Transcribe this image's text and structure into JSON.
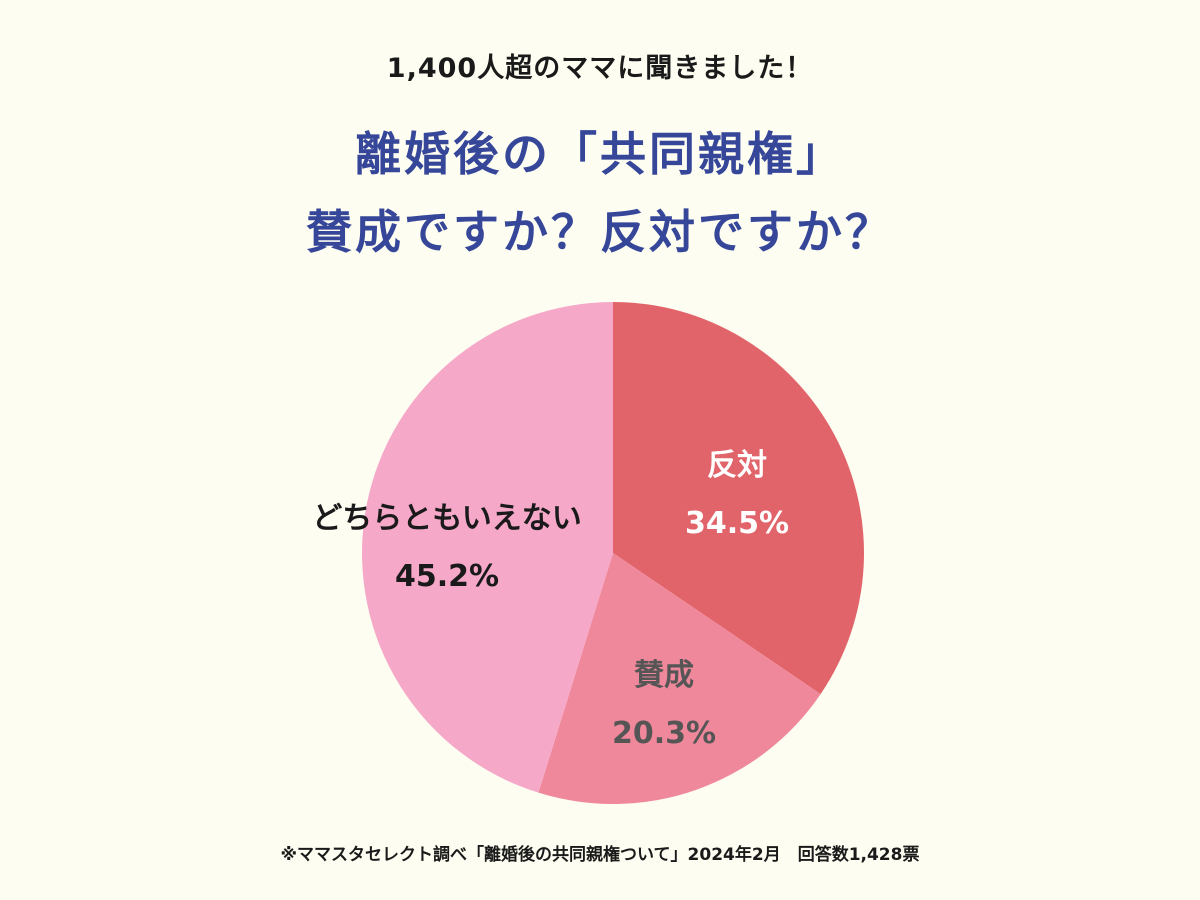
{
  "header": {
    "subtitle": "1,400人超のママに聞きました！",
    "title_line1": "離婚後の「共同親権」",
    "title_line2": "賛成ですか？反対ですか？"
  },
  "chart_data": {
    "type": "pie",
    "title": "離婚後の「共同親権」 賛成ですか？反対ですか？",
    "slices": [
      {
        "label": "反対",
        "value": 34.5,
        "value_label": "34.5%",
        "color": "#e2646b",
        "label_color": "#ffffff",
        "value_color": "#ffffff"
      },
      {
        "label": "賛成",
        "value": 20.3,
        "value_label": "20.3%",
        "color": "#f0889c",
        "label_color": "#555555",
        "value_color": "#555555"
      },
      {
        "label": "どちらともいえない",
        "value": 45.2,
        "value_label": "45.2%",
        "color": "#f6a8c9",
        "label_color": "#1a1a1a",
        "value_color": "#1a1a1a"
      }
    ],
    "start_angle": "top",
    "direction": "clockwise",
    "legend": "none"
  },
  "footer": {
    "note": "※ママスタセレクト調べ「離婚後の共同親権ついて」2024年2月　回答数1,428票"
  },
  "colors": {
    "background": "#fdfdf1",
    "title": "#36479a"
  }
}
